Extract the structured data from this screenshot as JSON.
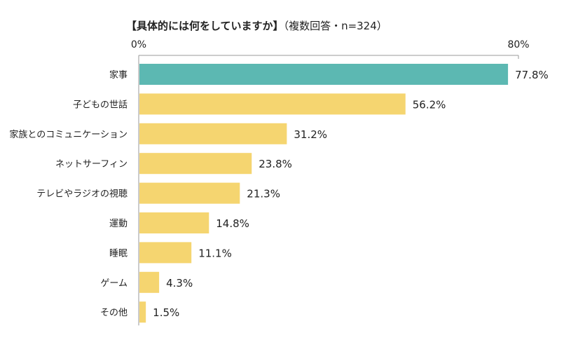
{
  "chart_data": {
    "type": "bar",
    "orientation": "horizontal",
    "title": "【具体的には何をしていますか】",
    "subtitle": "（複数回答・n=324）",
    "axis_ticks": [
      "0%",
      "80%"
    ],
    "xlim": [
      0,
      80
    ],
    "categories": [
      "家事",
      "子どもの世話",
      "家族とのコミュニケーション",
      "ネットサーフィン",
      "テレビやラジオの視聴",
      "運動",
      "睡眠",
      "ゲーム",
      "その他"
    ],
    "values": [
      77.8,
      56.2,
      31.2,
      23.8,
      21.3,
      14.8,
      11.1,
      4.3,
      1.5
    ],
    "value_labels": [
      "77.8%",
      "56.2%",
      "31.2%",
      "23.8%",
      "21.3%",
      "14.8%",
      "11.1%",
      "4.3%",
      "1.5%"
    ],
    "colors": {
      "highlight": "#5cb8b2",
      "default": "#f5d570",
      "axis": "#9a9a9a"
    },
    "grid": false,
    "legend": "none"
  }
}
